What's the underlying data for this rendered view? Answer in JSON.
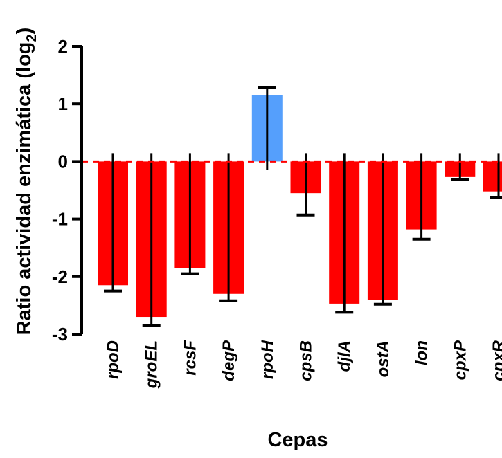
{
  "chart_data": {
    "type": "bar",
    "title": "",
    "xlabel": "Cepas",
    "ylabel": "Ratio actividad enzimática (log",
    "ylabel_sub": "2",
    "ylabel_close": ")",
    "ylim": [
      -3,
      2
    ],
    "yticks": [
      -3,
      -2,
      -1,
      0,
      1,
      2
    ],
    "ytick_labels": [
      "-3",
      "-2",
      "-1",
      "0",
      "1",
      "2"
    ],
    "grid": false,
    "categories": [
      "rpoD",
      "groEL",
      "rcsF",
      "degP",
      "rpoH",
      "cpsB",
      "djlA",
      "ostA",
      "lon",
      "cpxP",
      "cpxR"
    ],
    "values": [
      -2.15,
      -2.7,
      -1.85,
      -2.3,
      1.15,
      -0.55,
      -2.47,
      -2.4,
      -1.18,
      -0.27,
      -0.52
    ],
    "errors": [
      0.1,
      0.15,
      0.1,
      0.12,
      0.13,
      0.38,
      0.15,
      0.08,
      0.17,
      0.05,
      0.1
    ],
    "colors": [
      "#ff0000",
      "#ff0000",
      "#ff0000",
      "#ff0000",
      "#559ffc",
      "#ff0000",
      "#ff0000",
      "#ff0000",
      "#ff0000",
      "#ff0000",
      "#ff0000"
    ]
  }
}
